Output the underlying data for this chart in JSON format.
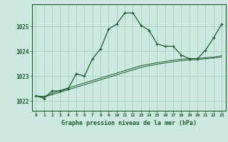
{
  "title": "Graphe pression niveau de la mer (hPa)",
  "x_labels": [
    "0",
    "1",
    "2",
    "3",
    "4",
    "5",
    "6",
    "7",
    "8",
    "9",
    "10",
    "11",
    "12",
    "13",
    "14",
    "15",
    "16",
    "17",
    "18",
    "19",
    "20",
    "21",
    "22",
    "23"
  ],
  "xlim": [
    -0.5,
    23.5
  ],
  "ylim": [
    1021.6,
    1025.9
  ],
  "yticks": [
    1022,
    1023,
    1024,
    1025
  ],
  "background_color": "#cce8e0",
  "grid_color": "#99ccbb",
  "line_color": "#1a5c2a",
  "main_series": [
    1022.2,
    1022.1,
    1022.4,
    1022.4,
    1022.5,
    1023.1,
    1023.0,
    1023.7,
    1024.1,
    1024.9,
    1025.1,
    1025.55,
    1025.55,
    1025.05,
    1024.85,
    1024.3,
    1024.2,
    1024.2,
    1023.85,
    1023.7,
    1023.7,
    1024.05,
    1024.55,
    1025.1
  ],
  "linear1": [
    1022.2,
    1022.15,
    1022.25,
    1022.35,
    1022.45,
    1022.55,
    1022.65,
    1022.75,
    1022.85,
    1022.95,
    1023.05,
    1023.15,
    1023.25,
    1023.35,
    1023.42,
    1023.48,
    1023.53,
    1023.58,
    1023.62,
    1023.65,
    1023.67,
    1023.7,
    1023.73,
    1023.77
  ],
  "linear2": [
    1022.2,
    1022.18,
    1022.3,
    1022.42,
    1022.52,
    1022.62,
    1022.72,
    1022.82,
    1022.92,
    1023.02,
    1023.12,
    1023.22,
    1023.32,
    1023.42,
    1023.48,
    1023.54,
    1023.59,
    1023.64,
    1023.68,
    1023.71,
    1023.71,
    1023.74,
    1023.77,
    1023.82
  ]
}
